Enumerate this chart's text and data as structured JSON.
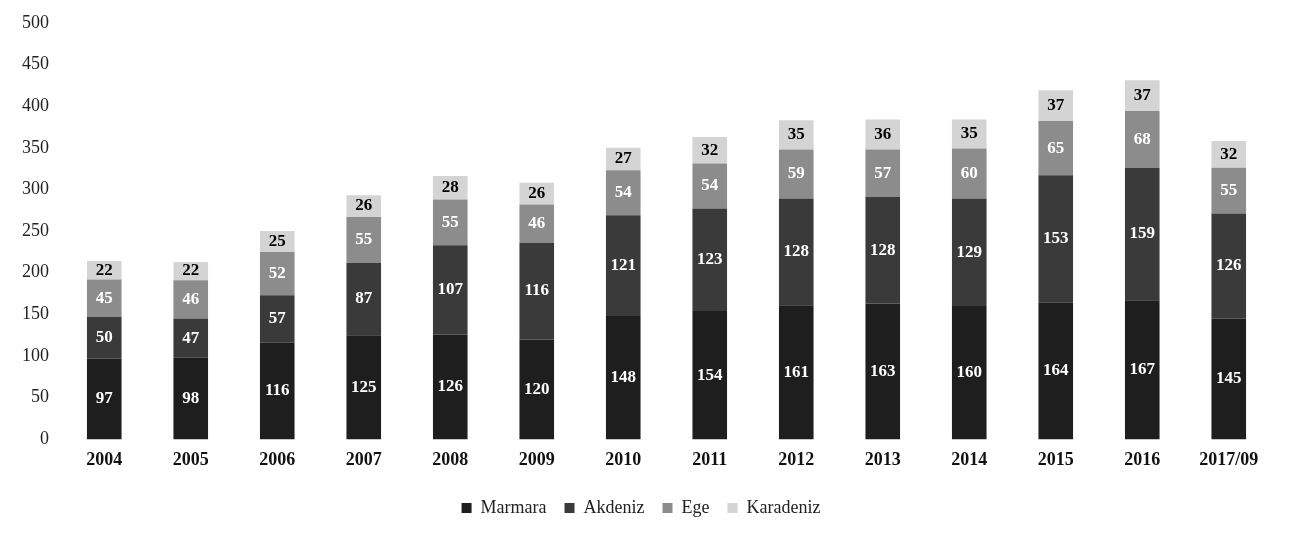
{
  "chart_data": {
    "type": "bar",
    "stacked": true,
    "categories": [
      "2004",
      "2005",
      "2006",
      "2007",
      "2008",
      "2009",
      "2010",
      "2011",
      "2012",
      "2013",
      "2014",
      "2015",
      "2016",
      "2017/09"
    ],
    "series": [
      {
        "name": "Marmara",
        "color": "#1e1e1e",
        "values": [
          97,
          98,
          116,
          125,
          126,
          120,
          148,
          154,
          161,
          163,
          160,
          164,
          167,
          145
        ]
      },
      {
        "name": "Akdeniz",
        "color": "#3a3a3a",
        "values": [
          50,
          47,
          57,
          87,
          107,
          116,
          121,
          123,
          128,
          128,
          129,
          153,
          159,
          126
        ]
      },
      {
        "name": "Ege",
        "color": "#8c8c8c",
        "values": [
          45,
          46,
          52,
          55,
          55,
          46,
          54,
          54,
          59,
          57,
          60,
          65,
          68,
          55
        ]
      },
      {
        "name": "Karadeniz",
        "color": "#d4d4d4",
        "values": [
          22,
          22,
          25,
          26,
          28,
          26,
          27,
          32,
          35,
          36,
          35,
          37,
          37,
          32
        ]
      }
    ],
    "ylim": [
      0,
      500
    ],
    "yticks": [
      0,
      50,
      100,
      150,
      200,
      250,
      300,
      350,
      400,
      450,
      500
    ],
    "grid": false,
    "legend": "bottom",
    "data_labels": true
  }
}
